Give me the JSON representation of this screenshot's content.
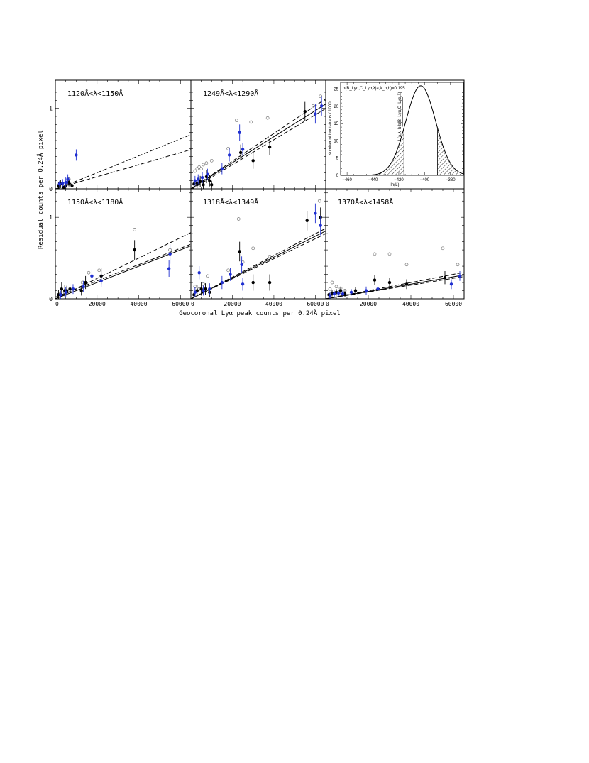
{
  "figure": {
    "xlabel": "Geocoronal Lyα peak counts per 0.24Å pixel",
    "ylabel": "Residual counts per 0.24Å pixel"
  },
  "chart_data": [
    {
      "type": "scatter",
      "title": "1120Å<λ<1150Å",
      "xlim": [
        0,
        65000
      ],
      "ylim": [
        0,
        1.35
      ],
      "yticks": [
        "0",
        "1"
      ],
      "xticks": [],
      "open_points": [
        [
          6500,
          0.12
        ],
        [
          5500,
          0.08
        ]
      ],
      "black_points": [
        [
          1500,
          0.04,
          0.04
        ],
        [
          2500,
          0.06,
          0.05
        ],
        [
          4000,
          0.02,
          0.02
        ],
        [
          5000,
          0.04,
          0.04
        ],
        [
          6500,
          0.08,
          0.05
        ],
        [
          8000,
          0.04,
          0.04
        ]
      ],
      "blue_points": [
        [
          2000,
          0.06,
          0.04
        ],
        [
          3500,
          0.07,
          0.05
        ],
        [
          5000,
          0.08,
          0.06
        ],
        [
          6000,
          0.12,
          0.06
        ],
        [
          10000,
          0.42,
          0.07
        ]
      ],
      "fit_lines": [
        {
          "style": "dashed",
          "slope": 1.05e-05,
          "intercept": -0.01
        },
        {
          "style": "dashed",
          "slope": 7.5e-06,
          "intercept": 0.0
        }
      ]
    },
    {
      "type": "scatter",
      "title": "1249Å<λ<1290Å",
      "xlim": [
        0,
        65000
      ],
      "ylim": [
        0,
        1.35
      ],
      "yticks": [],
      "xticks": [],
      "open_points": [
        [
          2000,
          0.22
        ],
        [
          3000,
          0.25
        ],
        [
          4000,
          0.27
        ],
        [
          5000,
          0.25
        ],
        [
          6000,
          0.3
        ],
        [
          7500,
          0.32
        ],
        [
          10000,
          0.35
        ],
        [
          18000,
          0.5
        ],
        [
          22000,
          0.85
        ],
        [
          29000,
          0.83
        ],
        [
          37000,
          0.88
        ],
        [
          59000,
          1.03
        ],
        [
          62500,
          1.15
        ]
      ],
      "black_points": [
        [
          1500,
          0.06,
          0.05
        ],
        [
          3000,
          0.07,
          0.06
        ],
        [
          4500,
          0.09,
          0.07
        ],
        [
          6000,
          0.05,
          0.05
        ],
        [
          7500,
          0.15,
          0.08
        ],
        [
          9000,
          0.1,
          0.07
        ],
        [
          10000,
          0.05,
          0.05
        ],
        [
          24000,
          0.45,
          0.1
        ],
        [
          30000,
          0.35,
          0.1
        ],
        [
          38000,
          0.52,
          0.1
        ],
        [
          55000,
          0.96,
          0.12
        ]
      ],
      "blue_points": [
        [
          2000,
          0.1,
          0.06
        ],
        [
          3500,
          0.12,
          0.06
        ],
        [
          5500,
          0.14,
          0.07
        ],
        [
          8000,
          0.18,
          0.07
        ],
        [
          15000,
          0.25,
          0.07
        ],
        [
          18500,
          0.42,
          0.08
        ],
        [
          23500,
          0.7,
          0.1
        ],
        [
          25000,
          0.49,
          0.08
        ],
        [
          60000,
          0.93,
          0.12
        ],
        [
          63000,
          1.03,
          0.12
        ]
      ],
      "fit_lines": [
        {
          "style": "solid",
          "slope": 1.62e-05,
          "intercept": 0.0
        },
        {
          "style": "dashed",
          "slope": 1.72e-05,
          "intercept": 0.0
        },
        {
          "style": "dashed",
          "slope": 1.55e-05,
          "intercept": -0.01
        }
      ]
    },
    {
      "type": "histogram",
      "title": "p(B_Lyα,C_Lyα,λ|a,λ_b,b)=0.195",
      "xlabel": "ln(L)",
      "ylabel": "Number of bootstraps / 1000",
      "xlim": [
        -465,
        -370
      ],
      "ylim": [
        0,
        27
      ],
      "xticks": [
        "−460",
        "−440",
        "−420",
        "−400",
        "−380"
      ],
      "yticks": [
        "0",
        "5",
        "10",
        "15",
        "20",
        "25"
      ],
      "gaussian": {
        "mean": -403,
        "sigma": 11.5,
        "peak": 26
      },
      "observed_lnL": -416,
      "mirror_lnL": -390,
      "observed_label": "L(a,λ_b,b|B_Lyα,C_Lyα,λ)"
    },
    {
      "type": "scatter",
      "title": "1150Å<λ<1180Å",
      "xlim": [
        0,
        65000
      ],
      "ylim": [
        0,
        1.35
      ],
      "yticks": [
        "0",
        "1"
      ],
      "xticks": [
        "0",
        "20000",
        "40000",
        "60000"
      ],
      "open_points": [
        [
          2000,
          0.06
        ],
        [
          4500,
          0.08
        ],
        [
          8000,
          0.1
        ],
        [
          13000,
          0.2
        ],
        [
          16000,
          0.32
        ],
        [
          21000,
          0.35
        ],
        [
          38000,
          0.85
        ],
        [
          55000,
          0.6
        ]
      ],
      "black_points": [
        [
          1500,
          0.05,
          0.06
        ],
        [
          3000,
          0.12,
          0.08
        ],
        [
          4500,
          0.1,
          0.07
        ],
        [
          5500,
          0.1,
          0.06
        ],
        [
          7000,
          0.12,
          0.07
        ],
        [
          12500,
          0.1,
          0.06
        ],
        [
          14500,
          0.2,
          0.08
        ],
        [
          22000,
          0.28,
          0.1
        ],
        [
          38000,
          0.6,
          0.12
        ]
      ],
      "blue_points": [
        [
          2500,
          0.05,
          0.05
        ],
        [
          5000,
          0.08,
          0.06
        ],
        [
          8500,
          0.12,
          0.06
        ],
        [
          13500,
          0.15,
          0.07
        ],
        [
          17500,
          0.28,
          0.08
        ],
        [
          22000,
          0.22,
          0.08
        ],
        [
          54500,
          0.37,
          0.1
        ],
        [
          55000,
          0.55,
          0.12
        ]
      ],
      "fit_lines": [
        {
          "style": "solid",
          "slope": 1e-05,
          "intercept": 0.0
        },
        {
          "style": "dashed",
          "slope": 1.25e-05,
          "intercept": 0.0
        },
        {
          "style": "dashed",
          "slope": 1e-05,
          "intercept": 0.02
        }
      ]
    },
    {
      "type": "scatter",
      "title": "1318Å<λ<1349Å",
      "xlim": [
        0,
        65000
      ],
      "ylim": [
        0,
        1.35
      ],
      "yticks": [],
      "xticks": [
        "0",
        "20000",
        "40000",
        "60000"
      ],
      "open_points": [
        [
          2000,
          0.15
        ],
        [
          4000,
          0.12
        ],
        [
          6000,
          0.18
        ],
        [
          8000,
          0.28
        ],
        [
          18000,
          0.35
        ],
        [
          23000,
          0.98
        ],
        [
          25000,
          0.45
        ],
        [
          30000,
          0.62
        ],
        [
          38000,
          0.52
        ],
        [
          62000,
          1.2
        ]
      ],
      "black_points": [
        [
          1500,
          0.05,
          0.06
        ],
        [
          3000,
          0.1,
          0.07
        ],
        [
          5000,
          0.12,
          0.08
        ],
        [
          7000,
          0.12,
          0.07
        ],
        [
          9000,
          0.08,
          0.06
        ],
        [
          23500,
          0.58,
          0.12
        ],
        [
          30000,
          0.2,
          0.1
        ],
        [
          38000,
          0.2,
          0.1
        ],
        [
          56000,
          0.96,
          0.12
        ],
        [
          62500,
          1.0,
          0.12
        ]
      ],
      "blue_points": [
        [
          2000,
          0.08,
          0.06
        ],
        [
          4000,
          0.32,
          0.08
        ],
        [
          6000,
          0.1,
          0.06
        ],
        [
          9000,
          0.12,
          0.07
        ],
        [
          15000,
          0.2,
          0.08
        ],
        [
          19000,
          0.3,
          0.08
        ],
        [
          24500,
          0.42,
          0.1
        ],
        [
          25000,
          0.18,
          0.08
        ],
        [
          60000,
          1.05,
          0.12
        ],
        [
          62500,
          0.9,
          0.12
        ]
      ],
      "fit_lines": [
        {
          "style": "solid",
          "slope": 1.28e-05,
          "intercept": 0.0
        },
        {
          "style": "dashed",
          "slope": 1.33e-05,
          "intercept": 0.0
        },
        {
          "style": "dashed",
          "slope": 1.23e-05,
          "intercept": 0.0
        }
      ]
    },
    {
      "type": "scatter",
      "title": "1370Å<λ<1458Å",
      "xlim": [
        0,
        65000
      ],
      "ylim": [
        0,
        1.35
      ],
      "yticks": [],
      "xticks": [
        "0",
        "20000",
        "40000",
        "60000"
      ],
      "open_points": [
        [
          2000,
          0.12
        ],
        [
          3000,
          0.2
        ],
        [
          5000,
          0.15
        ],
        [
          7000,
          0.13
        ],
        [
          9000,
          0.1
        ],
        [
          23000,
          0.55
        ],
        [
          30000,
          0.55
        ],
        [
          38000,
          0.42
        ],
        [
          55000,
          0.62
        ],
        [
          62000,
          0.42
        ]
      ],
      "black_points": [
        [
          1500,
          0.05,
          0.04
        ],
        [
          3000,
          0.07,
          0.04
        ],
        [
          5000,
          0.08,
          0.04
        ],
        [
          7000,
          0.1,
          0.04
        ],
        [
          9000,
          0.06,
          0.04
        ],
        [
          14000,
          0.1,
          0.04
        ],
        [
          23000,
          0.23,
          0.06
        ],
        [
          30000,
          0.2,
          0.06
        ],
        [
          38000,
          0.18,
          0.06
        ],
        [
          56000,
          0.26,
          0.08
        ]
      ],
      "blue_points": [
        [
          2000,
          0.04,
          0.04
        ],
        [
          4000,
          0.06,
          0.04
        ],
        [
          6000,
          0.07,
          0.04
        ],
        [
          8000,
          0.06,
          0.04
        ],
        [
          12000,
          0.08,
          0.04
        ],
        [
          19000,
          0.1,
          0.05
        ],
        [
          24500,
          0.12,
          0.05
        ],
        [
          59000,
          0.18,
          0.06
        ],
        [
          63000,
          0.28,
          0.06
        ]
      ],
      "fit_lines": [
        {
          "style": "solid",
          "slope": 4.5e-06,
          "intercept": 0.0
        },
        {
          "style": "dashed",
          "slope": 5e-06,
          "intercept": 0.0
        },
        {
          "style": "dashed",
          "slope": 4.2e-06,
          "intercept": 0.0
        }
      ]
    }
  ],
  "colors": {
    "blue_points": "#1f2fd0",
    "black_points": "#000000",
    "open_points": "#777777"
  }
}
